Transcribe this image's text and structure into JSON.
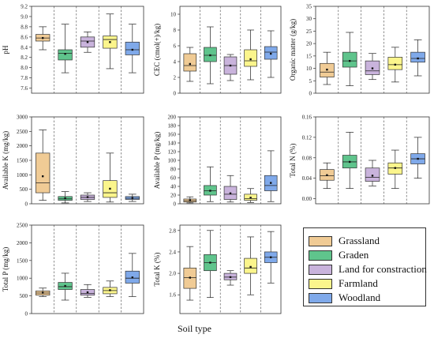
{
  "xlabel": "Soil type",
  "colors": [
    "#f0cb95",
    "#5fc48c",
    "#c9b3dc",
    "#fbf58c",
    "#7fa9ea"
  ],
  "legend": [
    "Grassland",
    "Graden",
    "Land for constraction",
    "Farmland",
    "Woodland"
  ],
  "chart_data": [
    {
      "type": "box",
      "ylabel": "pH",
      "ylim": [
        7.5,
        9.2
      ],
      "ticks": [
        "7.6",
        "7.8",
        "8.0",
        "8.2",
        "8.4",
        "8.6",
        "8.8",
        "9.0",
        "9.2"
      ],
      "categories": [
        "Grassland",
        "Graden",
        "Land for constraction",
        "Farmland",
        "Woodland"
      ],
      "boxes": [
        {
          "min": 8.35,
          "q1": 8.52,
          "median": 8.58,
          "q3": 8.65,
          "max": 8.8,
          "mean": 8.58
        },
        {
          "min": 7.9,
          "q1": 8.15,
          "median": 8.28,
          "q3": 8.35,
          "max": 8.85,
          "mean": 8.27
        },
        {
          "min": 8.3,
          "q1": 8.4,
          "median": 8.52,
          "q3": 8.6,
          "max": 8.7,
          "mean": 8.5
        },
        {
          "min": 7.98,
          "q1": 8.38,
          "median": 8.55,
          "q3": 8.62,
          "max": 9.05,
          "mean": 8.5
        },
        {
          "min": 7.9,
          "q1": 8.25,
          "median": 8.35,
          "q3": 8.5,
          "max": 8.85,
          "mean": 8.35
        }
      ]
    },
    {
      "type": "box",
      "ylabel": "CEC (cmol(+)/kg)",
      "ylim": [
        0,
        11
      ],
      "ticks": [
        "0",
        "2",
        "4",
        "6",
        "8",
        "10"
      ],
      "categories": [
        "Grassland",
        "Graden",
        "Land for constraction",
        "Farmland",
        "Woodland"
      ],
      "boxes": [
        {
          "min": 1.5,
          "q1": 2.8,
          "median": 3.5,
          "q3": 5.0,
          "max": 5.8,
          "mean": 3.7
        },
        {
          "min": 1.2,
          "q1": 4.0,
          "median": 4.8,
          "q3": 5.8,
          "max": 8.4,
          "mean": 4.8
        },
        {
          "min": 1.6,
          "q1": 2.4,
          "median": 3.5,
          "q3": 4.6,
          "max": 4.9,
          "mean": 3.5
        },
        {
          "min": 1.7,
          "q1": 3.4,
          "median": 4.1,
          "q3": 5.5,
          "max": 8.0,
          "mean": 4.3
        },
        {
          "min": 2.0,
          "q1": 4.3,
          "median": 5.2,
          "q3": 5.9,
          "max": 7.9,
          "mean": 5.0
        }
      ]
    },
    {
      "type": "box",
      "ylabel": "Organic matter (g/kg)",
      "ylim": [
        0,
        35
      ],
      "ticks": [
        "0",
        "5",
        "10",
        "15",
        "20",
        "25",
        "30",
        "35"
      ],
      "categories": [
        "Grassland",
        "Graden",
        "Land for constraction",
        "Farmland",
        "Woodland"
      ],
      "boxes": [
        {
          "min": 3.5,
          "q1": 6.5,
          "median": 8.5,
          "q3": 12.0,
          "max": 16.5,
          "mean": 9.5
        },
        {
          "min": 3.0,
          "q1": 10.5,
          "median": 13.0,
          "q3": 16.5,
          "max": 24.5,
          "mean": 13.0
        },
        {
          "min": 5.5,
          "q1": 7.5,
          "median": 9.0,
          "q3": 13.0,
          "max": 16.0,
          "mean": 10.0
        },
        {
          "min": 4.5,
          "q1": 9.5,
          "median": 11.5,
          "q3": 14.5,
          "max": 18.5,
          "mean": 11.5
        },
        {
          "min": 7.0,
          "q1": 12.5,
          "median": 14.0,
          "q3": 16.5,
          "max": 21.5,
          "mean": 14.0
        }
      ]
    },
    {
      "type": "box",
      "ylabel": "Available K (mg/kg)",
      "ylim": [
        0,
        3000
      ],
      "ticks": [
        "0",
        "500",
        "1000",
        "1500",
        "2000",
        "2500",
        "3000"
      ],
      "categories": [
        "Grassland",
        "Graden",
        "Land for constraction",
        "Farmland",
        "Woodland"
      ],
      "boxes": [
        {
          "min": 120,
          "q1": 380,
          "median": 720,
          "q3": 1750,
          "max": 2550,
          "mean": 950
        },
        {
          "min": 30,
          "q1": 120,
          "median": 170,
          "q3": 250,
          "max": 420,
          "mean": 190
        },
        {
          "min": 80,
          "q1": 150,
          "median": 220,
          "q3": 300,
          "max": 380,
          "mean": 230
        },
        {
          "min": 60,
          "q1": 220,
          "median": 380,
          "q3": 800,
          "max": 1750,
          "mean": 520
        },
        {
          "min": 80,
          "q1": 150,
          "median": 190,
          "q3": 250,
          "max": 330,
          "mean": 200
        }
      ]
    },
    {
      "type": "box",
      "ylabel": "Available P (mg/kg)",
      "ylim": [
        0,
        200
      ],
      "ticks": [
        "0",
        "20",
        "40",
        "60",
        "80",
        "100",
        "120",
        "140",
        "160",
        "180",
        "200"
      ],
      "categories": [
        "Grassland",
        "Graden",
        "Land for constraction",
        "Farmland",
        "Woodland"
      ],
      "boxes": [
        {
          "min": 2,
          "q1": 4,
          "median": 7,
          "q3": 11,
          "max": 16,
          "mean": 8
        },
        {
          "min": 5,
          "q1": 20,
          "median": 30,
          "q3": 42,
          "max": 85,
          "mean": 30
        },
        {
          "min": 4,
          "q1": 10,
          "median": 22,
          "q3": 40,
          "max": 65,
          "mean": 24
        },
        {
          "min": 3,
          "q1": 8,
          "median": 12,
          "q3": 22,
          "max": 35,
          "mean": 14
        },
        {
          "min": 5,
          "q1": 30,
          "median": 42,
          "q3": 65,
          "max": 122,
          "mean": 48
        }
      ]
    },
    {
      "type": "box",
      "ylabel": "Total N (%)",
      "ylim": [
        -0.01,
        0.16
      ],
      "ticks": [
        "0.00",
        "0.04",
        "0.08",
        "0.12",
        "0.16"
      ],
      "categories": [
        "Grassland",
        "Graden",
        "Land for constraction",
        "Farmland",
        "Woodland"
      ],
      "boxes": [
        {
          "min": 0.02,
          "q1": 0.036,
          "median": 0.045,
          "q3": 0.057,
          "max": 0.07,
          "mean": 0.046
        },
        {
          "min": 0.02,
          "q1": 0.06,
          "median": 0.072,
          "q3": 0.085,
          "max": 0.13,
          "mean": 0.072
        },
        {
          "min": 0.025,
          "q1": 0.034,
          "median": 0.042,
          "q3": 0.06,
          "max": 0.075,
          "mean": 0.045
        },
        {
          "min": 0.02,
          "q1": 0.048,
          "median": 0.06,
          "q3": 0.07,
          "max": 0.095,
          "mean": 0.06
        },
        {
          "min": 0.04,
          "q1": 0.068,
          "median": 0.078,
          "q3": 0.088,
          "max": 0.12,
          "mean": 0.078
        }
      ]
    },
    {
      "type": "box",
      "ylabel": "Total P (mg/kg)",
      "ylim": [
        0,
        2500
      ],
      "ticks": [
        "0",
        "500",
        "1000",
        "1500",
        "2000",
        "2500"
      ],
      "categories": [
        "Grassland",
        "Graden",
        "Land for constraction",
        "Farmland",
        "Woodland"
      ],
      "boxes": [
        {
          "min": 480,
          "q1": 520,
          "median": 580,
          "q3": 640,
          "max": 720,
          "mean": 590
        },
        {
          "min": 380,
          "q1": 680,
          "median": 760,
          "q3": 880,
          "max": 1140,
          "mean": 780
        },
        {
          "min": 460,
          "q1": 520,
          "median": 570,
          "q3": 680,
          "max": 820,
          "mean": 600
        },
        {
          "min": 480,
          "q1": 560,
          "median": 650,
          "q3": 740,
          "max": 920,
          "mean": 660
        },
        {
          "min": 480,
          "q1": 860,
          "median": 1000,
          "q3": 1200,
          "max": 1700,
          "mean": 1020
        }
      ]
    },
    {
      "type": "box",
      "ylabel": "Total K (%)",
      "ylim": [
        1.25,
        2.9
      ],
      "ticks": [
        "1.2",
        "1.6",
        "2.0",
        "2.4",
        "2.8"
      ],
      "categories": [
        "Grassland",
        "Graden",
        "Land for constraction",
        "Farmland",
        "Woodland"
      ],
      "boxes": [
        {
          "min": 1.5,
          "q1": 1.72,
          "median": 1.92,
          "q3": 2.1,
          "max": 2.5,
          "mean": 1.92
        },
        {
          "min": 1.55,
          "q1": 2.05,
          "median": 2.2,
          "q3": 2.35,
          "max": 2.8,
          "mean": 2.2
        },
        {
          "min": 1.78,
          "q1": 1.88,
          "median": 1.93,
          "q3": 2.0,
          "max": 2.05,
          "mean": 1.93
        },
        {
          "min": 1.6,
          "q1": 2.0,
          "median": 2.1,
          "q3": 2.28,
          "max": 2.68,
          "mean": 2.12
        },
        {
          "min": 1.82,
          "q1": 2.2,
          "median": 2.3,
          "q3": 2.4,
          "max": 2.78,
          "mean": 2.3
        }
      ]
    }
  ]
}
